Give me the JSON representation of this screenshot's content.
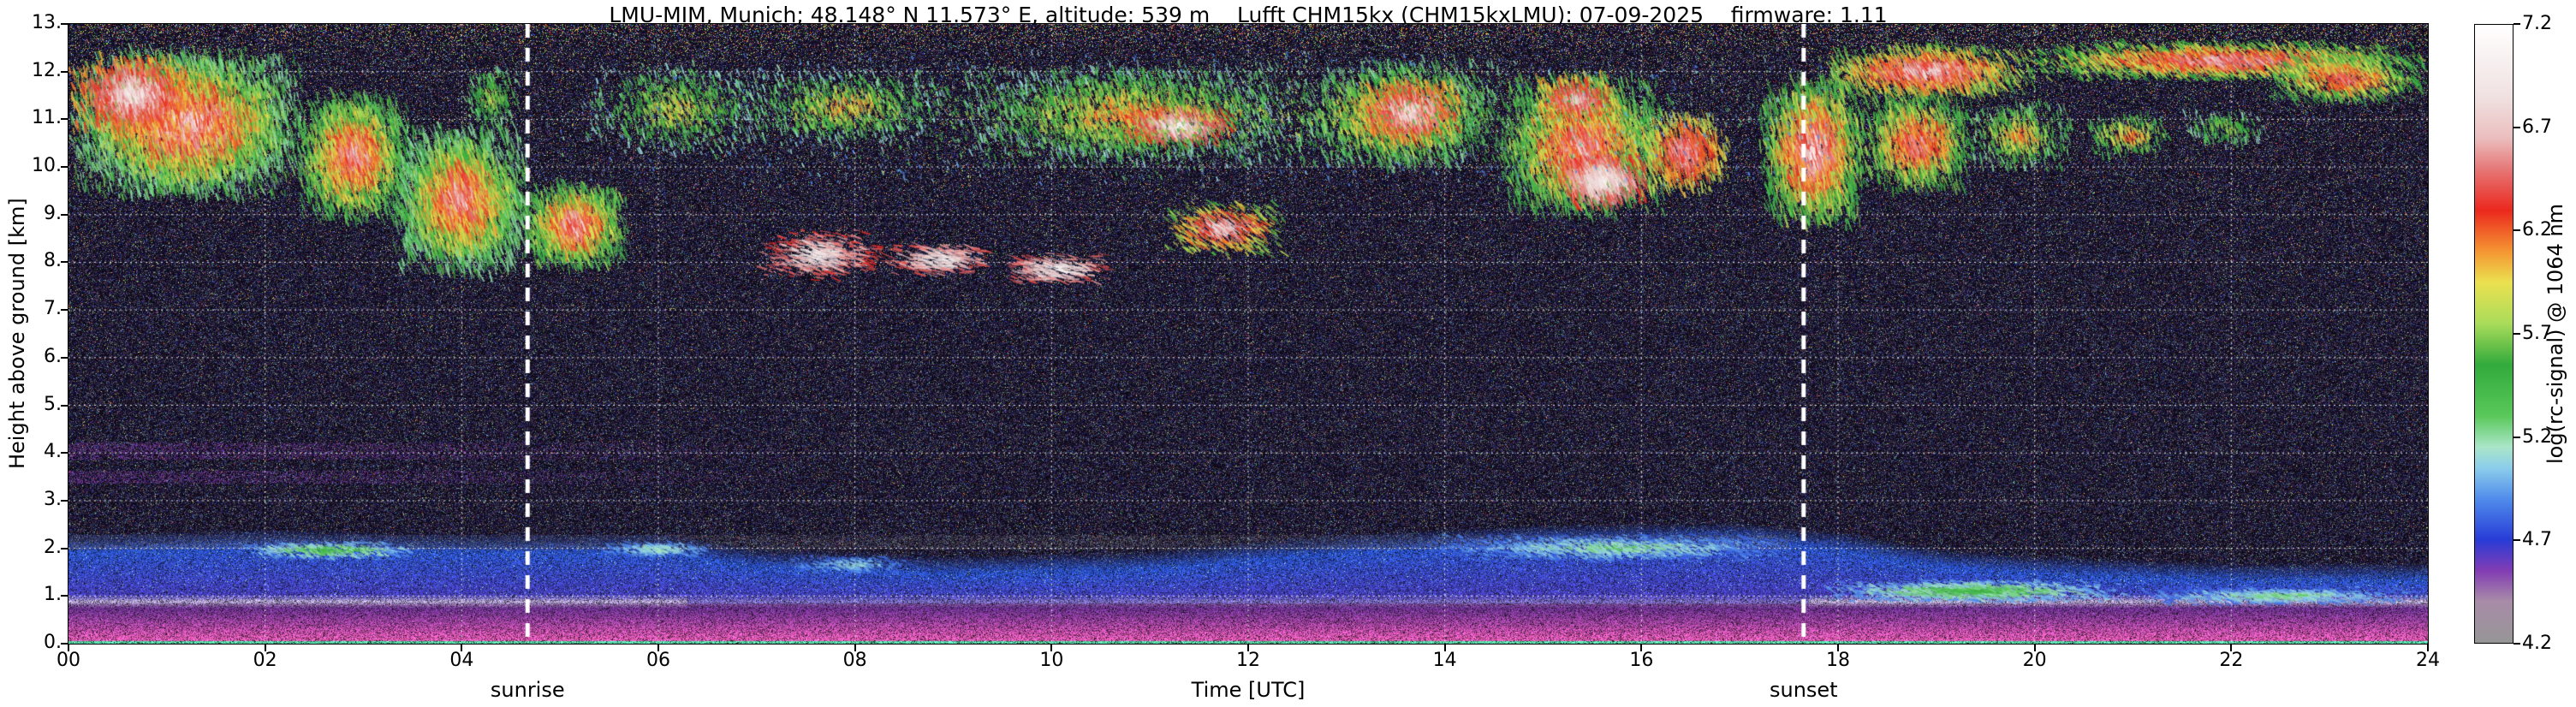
{
  "title": "LMU-MIM, Munich; 48.148° N 11.573° E, altitude: 539 m    Lufft CHM15kx (CHM15kxLMU): 07-09-2025    firmware: 1.11",
  "axes": {
    "x_label": "Time [UTC]",
    "y_label": "Height above ground [km]",
    "x_ticks": [
      "00",
      "02",
      "04",
      "06",
      "08",
      "10",
      "12",
      "14",
      "16",
      "18",
      "20",
      "22",
      "24"
    ],
    "x_tick_hours": [
      0,
      2,
      4,
      6,
      8,
      10,
      12,
      14,
      16,
      18,
      20,
      22,
      24
    ],
    "y_ticks": [
      "0.",
      "1.",
      "2.",
      "3.",
      "4.",
      "5.",
      "6.",
      "7.",
      "8.",
      "9.",
      "10.",
      "11.",
      "12.",
      "13."
    ],
    "y_tick_km": [
      0,
      1,
      2,
      3,
      4,
      5,
      6,
      7,
      8,
      9,
      10,
      11,
      12,
      13
    ],
    "x_range_hours": [
      0,
      24
    ],
    "y_range_km": [
      0,
      13
    ]
  },
  "sun": {
    "sunrise_label": "sunrise",
    "sunrise_hour": 4.67,
    "sunset_label": "sunset",
    "sunset_hour": 17.65
  },
  "colorbar": {
    "label": "log(rc-signal) @ 1064 nm",
    "ticks": [
      "7.2",
      "6.7",
      "6.2",
      "5.7",
      "5.2",
      "4.7",
      "4.2"
    ],
    "tick_values": [
      7.2,
      6.7,
      6.2,
      5.7,
      5.2,
      4.7,
      4.2
    ],
    "range": [
      4.2,
      7.2
    ]
  },
  "chart_data": {
    "type": "heatmap",
    "title": "LMU-MIM, Munich; 48.148° N 11.573° E, altitude: 539 m    Lufft CHM15kx (CHM15kxLMU): 07-09-2025    firmware: 1.11",
    "x_axis": {
      "label": "Time [UTC]",
      "range_hours": [
        0,
        24
      ],
      "gridlines_every_h": 2
    },
    "y_axis": {
      "label": "Height above ground [km]",
      "range_km": [
        0,
        13
      ],
      "gridlines_every_km": 1
    },
    "value_axis": {
      "label": "log(rc-signal) @ 1064 nm",
      "range": [
        4.2,
        7.2
      ]
    },
    "grid": "dotted white",
    "colormap_stops": [
      [
        4.2,
        "#969696"
      ],
      [
        4.4,
        "#a88ca8"
      ],
      [
        4.55,
        "#823cb4"
      ],
      [
        4.7,
        "#283cd7"
      ],
      [
        4.9,
        "#508ceb"
      ],
      [
        5.05,
        "#8ccdeb"
      ],
      [
        5.15,
        "#aae6c8"
      ],
      [
        5.3,
        "#5ac85a"
      ],
      [
        5.55,
        "#32aa3c"
      ],
      [
        5.75,
        "#aadc5a"
      ],
      [
        5.95,
        "#ebe150"
      ],
      [
        6.1,
        "#f59632"
      ],
      [
        6.3,
        "#eb281e"
      ],
      [
        6.5,
        "#e67878"
      ],
      [
        6.65,
        "#ebbebe"
      ],
      [
        6.85,
        "#f0e1e1"
      ],
      [
        7.2,
        "#ffffff"
      ]
    ],
    "features": {
      "description": "Ceilometer quicklook: grainy dark background noise increasing with height; dense cirrus streaks 8-12.5 km (strong 00-05 UTC, scattered 05-13 UTC, strong 13-19 UTC, high band 11.5-12.6 km after 18 UTC); thin white mid-level cloud streaks near 8 km 07-11 UTC; stratified aerosol boundary layer below ~2.2 km (magenta near surface, blue above, bright band near 0.9 km); faint violet residual layers 3.3-4.2 km before ~07 UTC; dashed white vertical lines at sunrise 04:40 and sunset 17:39 UTC.",
      "boundary_layer": {
        "top_km": [
          [
            0,
            1.9
          ],
          [
            2,
            2.0
          ],
          [
            4,
            1.9
          ],
          [
            6,
            1.9
          ],
          [
            7,
            1.6
          ],
          [
            9,
            1.45
          ],
          [
            11,
            1.55
          ],
          [
            13,
            1.9
          ],
          [
            15,
            2.1
          ],
          [
            17,
            2.15
          ],
          [
            18,
            1.95
          ],
          [
            19,
            1.6
          ],
          [
            20,
            1.45
          ],
          [
            22,
            1.3
          ],
          [
            24,
            1.3
          ]
        ]
      },
      "cloud_fields": [
        "t_start_h",
        "t_end_h",
        "h_base_km",
        "h_top_km",
        "value_min",
        "value_max",
        "streak_density",
        "streak_len_px",
        "streak_slant_rad"
      ],
      "clouds": [
        [
          0.0,
          2.4,
          9.3,
          12.5,
          5.2,
          7.2,
          0.14,
          10,
          0.25
        ],
        [
          0.0,
          1.3,
          10.6,
          12.4,
          6.0,
          7.2,
          0.1,
          9,
          0.25
        ],
        [
          2.3,
          3.5,
          8.8,
          11.6,
          5.3,
          7.0,
          0.12,
          10,
          0.3
        ],
        [
          3.3,
          4.7,
          7.7,
          10.9,
          5.2,
          7.0,
          0.12,
          12,
          0.3
        ],
        [
          4.6,
          5.7,
          7.8,
          9.7,
          5.3,
          7.1,
          0.13,
          10,
          0.3
        ],
        [
          4.0,
          4.6,
          10.8,
          12.1,
          5.2,
          6.0,
          0.05,
          7,
          0.3
        ],
        [
          5.2,
          7.2,
          10.2,
          12.2,
          5.1,
          6.2,
          0.035,
          7,
          0.35
        ],
        [
          6.8,
          9.0,
          10.4,
          12.1,
          5.1,
          6.4,
          0.04,
          7,
          0.35
        ],
        [
          7.0,
          8.3,
          7.6,
          8.7,
          6.3,
          7.2,
          0.05,
          9,
          1.3
        ],
        [
          8.3,
          9.4,
          7.7,
          8.4,
          6.4,
          7.2,
          0.055,
          10,
          1.35
        ],
        [
          9.5,
          10.6,
          7.5,
          8.2,
          6.4,
          7.2,
          0.05,
          10,
          1.35
        ],
        [
          9.0,
          12.6,
          10.0,
          12.2,
          5.1,
          6.5,
          0.05,
          8,
          0.35
        ],
        [
          10.7,
          11.9,
          10.4,
          11.3,
          6.2,
          7.2,
          0.07,
          9,
          0.5
        ],
        [
          11.1,
          12.4,
          8.1,
          9.3,
          5.6,
          7.2,
          0.06,
          9,
          0.9
        ],
        [
          12.5,
          14.6,
          9.9,
          12.3,
          5.2,
          6.8,
          0.07,
          9,
          0.35
        ],
        [
          13.1,
          14.2,
          10.4,
          11.9,
          6.0,
          7.2,
          0.06,
          9,
          0.35
        ],
        [
          14.5,
          16.3,
          8.9,
          12.0,
          5.3,
          7.0,
          0.09,
          11,
          0.3
        ],
        [
          15.1,
          16.1,
          9.1,
          10.3,
          6.3,
          7.2,
          0.09,
          10,
          0.4
        ],
        [
          16.0,
          16.9,
          9.4,
          11.2,
          5.8,
          6.9,
          0.08,
          10,
          0.3
        ],
        [
          14.9,
          15.8,
          10.8,
          12.0,
          5.9,
          7.0,
          0.07,
          9,
          0.3
        ],
        [
          17.2,
          18.3,
          8.7,
          11.9,
          5.4,
          7.2,
          0.11,
          12,
          0.25
        ],
        [
          18.2,
          19.4,
          9.4,
          11.6,
          5.4,
          6.9,
          0.08,
          10,
          0.3
        ],
        [
          19.3,
          20.4,
          9.9,
          11.4,
          5.2,
          6.4,
          0.05,
          8,
          0.3
        ],
        [
          20.5,
          21.4,
          10.2,
          11.1,
          5.3,
          6.5,
          0.05,
          8,
          0.3
        ],
        [
          21.5,
          22.4,
          10.4,
          11.2,
          5.1,
          6.0,
          0.04,
          7,
          0.3
        ],
        [
          17.8,
          20.0,
          11.4,
          12.6,
          5.6,
          7.1,
          0.1,
          9,
          0.5
        ],
        [
          19.8,
          24.0,
          11.8,
          12.65,
          5.5,
          7.0,
          0.11,
          8,
          0.8
        ],
        [
          22.3,
          24.0,
          11.3,
          12.4,
          5.4,
          6.8,
          0.08,
          8,
          0.6
        ],
        [
          4.5,
          18.5,
          9.5,
          12.5,
          4.9,
          6.2,
          0.008,
          4,
          0.4
        ]
      ],
      "bl_accents": [
        [
          1.7,
          3.6,
          1.75,
          2.15,
          4.9,
          5.6,
          0.1,
          6,
          1.2
        ],
        [
          5.4,
          6.6,
          1.8,
          2.15,
          4.85,
          5.3,
          0.1,
          6,
          1.2
        ],
        [
          7.3,
          8.6,
          1.45,
          1.85,
          4.8,
          5.2,
          0.08,
          5,
          1.2
        ],
        [
          13.8,
          17.6,
          1.7,
          2.3,
          4.8,
          5.4,
          0.09,
          6,
          1.2
        ],
        [
          17.8,
          21.0,
          0.85,
          1.35,
          4.9,
          5.6,
          0.12,
          7,
          1.3
        ],
        [
          21.0,
          24.0,
          0.8,
          1.2,
          4.8,
          5.4,
          0.1,
          7,
          1.3
        ]
      ],
      "aerosol_layers": [
        [
          0,
          7.5,
          3.35,
          3.62
        ],
        [
          0,
          7.5,
          3.86,
          4.22
        ]
      ],
      "gray_band_km": [
        1.97,
        2.28
      ],
      "gray_band_until_h": 17.5
    }
  }
}
